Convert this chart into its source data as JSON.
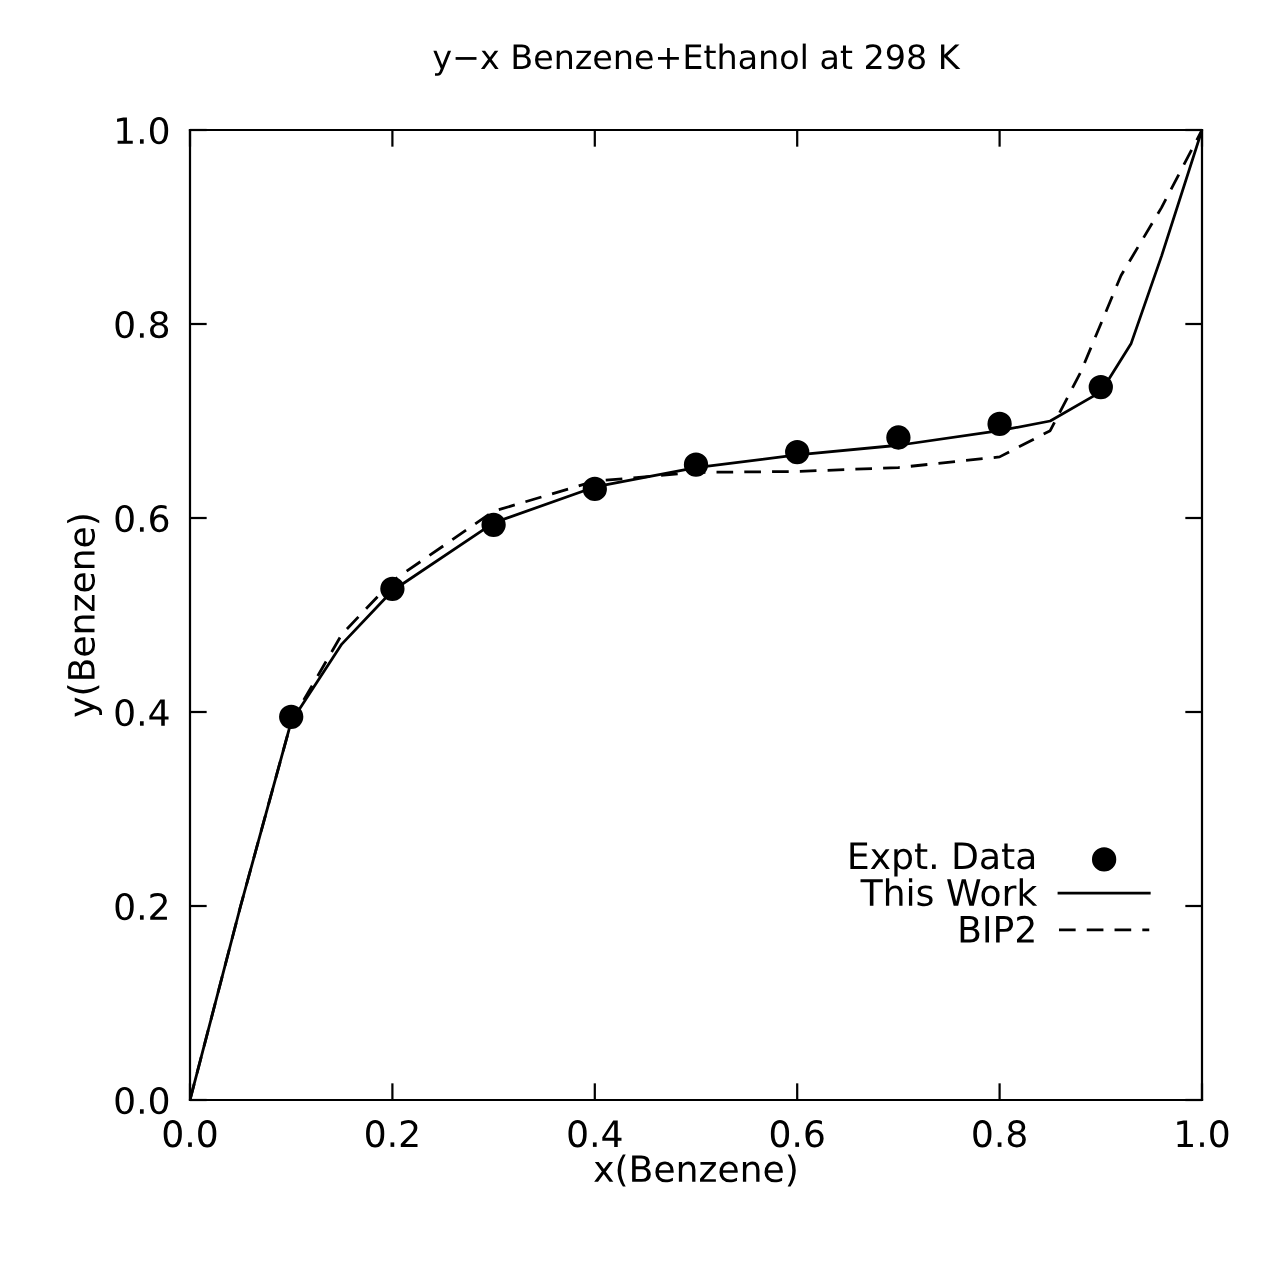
{
  "chart_data": {
    "type": "line",
    "title": "y−x Benzene+Ethanol at 298 K",
    "xlabel": "x(Benzene)",
    "ylabel": "y(Benzene)",
    "xlim": [
      0.0,
      1.0
    ],
    "ylim": [
      0.0,
      1.0
    ],
    "xticks": [
      {
        "value": 0,
        "label": "0.0"
      },
      0.2,
      0.4,
      0.6,
      0.8,
      {
        "value": 1,
        "label": "1.0"
      }
    ],
    "yticks": [
      {
        "value": 0,
        "label": "0.0"
      },
      0.2,
      0.4,
      0.6,
      0.8,
      {
        "value": 1,
        "label": "1.0"
      }
    ],
    "grid": false,
    "legend": "bottom right",
    "series": [
      {
        "name": "Expt. Data",
        "type": "scatter",
        "marker": "circle",
        "color": "#000000",
        "x": [
          0.1,
          0.2,
          0.3,
          0.4,
          0.5,
          0.6,
          0.7,
          0.8,
          0.9
        ],
        "values": [
          0.395,
          0.527,
          0.593,
          0.63,
          0.655,
          0.668,
          0.683,
          0.697,
          0.735
        ]
      },
      {
        "name": "This Work",
        "line_style": "solid",
        "color": "#000000",
        "x": [
          0,
          0.05,
          0.1,
          0.15,
          0.2,
          0.3,
          0.4,
          0.5,
          0.6,
          0.7,
          0.8,
          0.85,
          0.9,
          0.93,
          0.96,
          1.0
        ],
        "values": [
          0,
          0.2,
          0.39,
          0.47,
          0.525,
          0.595,
          0.632,
          0.652,
          0.665,
          0.675,
          0.69,
          0.7,
          0.73,
          0.78,
          0.87,
          1.0
        ]
      },
      {
        "name": "BIP2",
        "line_style": "dashed",
        "color": "#000000",
        "x": [
          0,
          0.05,
          0.1,
          0.15,
          0.2,
          0.3,
          0.4,
          0.5,
          0.6,
          0.7,
          0.8,
          0.85,
          0.88,
          0.92,
          0.96,
          1.0
        ],
        "values": [
          0,
          0.2,
          0.39,
          0.48,
          0.535,
          0.607,
          0.638,
          0.647,
          0.648,
          0.652,
          0.663,
          0.69,
          0.75,
          0.85,
          0.92,
          1.0
        ]
      }
    ]
  }
}
